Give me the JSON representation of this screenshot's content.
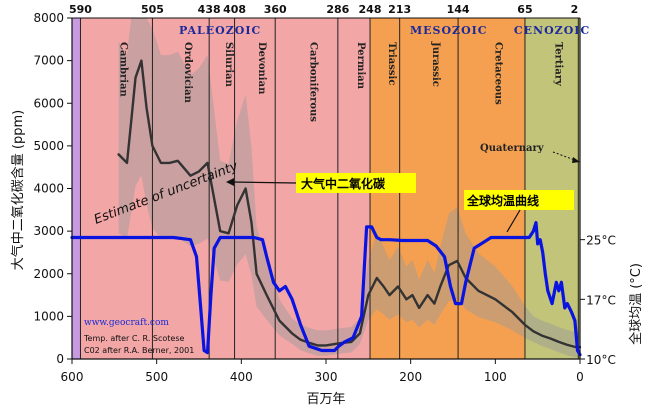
{
  "chart_data": {
    "type": "line",
    "xlabel": "百万年",
    "ylabel_left": "大气中二氧化碳含量 (ppm)",
    "ylabel_right": "全球均温 (°C)",
    "xlim": [
      600,
      0
    ],
    "ylim": [
      0,
      8000
    ],
    "x_ticks": [
      600,
      500,
      400,
      300,
      200,
      100,
      0
    ],
    "y_ticks": [
      0,
      1000,
      2000,
      3000,
      4000,
      5000,
      6000,
      7000,
      8000
    ],
    "right_ticks": [
      {
        "label": "25°C",
        "ppm": 2800
      },
      {
        "label": "17°C",
        "ppm": 1400
      },
      {
        "label": "10°C",
        "ppm": 0
      }
    ],
    "top_ages": [
      "590",
      "505",
      "438",
      "408",
      "360",
      "286",
      "248",
      "213",
      "144",
      "65",
      "2"
    ],
    "top_age_positions": [
      590,
      505,
      438,
      408,
      360,
      286,
      248,
      213,
      144,
      65,
      2
    ],
    "eras": [
      {
        "name": "PALEOZOIC",
        "at": 425
      },
      {
        "name": "MESOZOIC",
        "at": 155
      },
      {
        "name": "CENOZOIC",
        "at": 33
      }
    ],
    "periods": [
      {
        "name": "Cambrian",
        "start": 590,
        "end": 505,
        "color": "#f2a6a6"
      },
      {
        "name": "Ordovician",
        "start": 505,
        "end": 438,
        "color": "#f2a6a6"
      },
      {
        "name": "Silurian",
        "start": 438,
        "end": 408,
        "color": "#f2a6a6"
      },
      {
        "name": "Devonian",
        "start": 408,
        "end": 360,
        "color": "#f2a6a6"
      },
      {
        "name": "Carboniferous",
        "start": 360,
        "end": 286,
        "color": "#f2a6a6"
      },
      {
        "name": "Permian",
        "start": 286,
        "end": 248,
        "color": "#f2a6a6"
      },
      {
        "name": "Triassic",
        "start": 248,
        "end": 213,
        "color": "#f5a050"
      },
      {
        "name": "Jurassic",
        "start": 213,
        "end": 144,
        "color": "#f5a050"
      },
      {
        "name": "Cretaceous",
        "start": 144,
        "end": 65,
        "color": "#f5a050"
      },
      {
        "name": "Tertiary",
        "start": 65,
        "end": 2,
        "color": "#c2c47a"
      }
    ],
    "quaternary_label": "Quaternary",
    "uncertainty_label": "Estimate of uncertainty",
    "series": [
      {
        "name": "大气中二氧化碳",
        "color": "#333333",
        "x": [
          545,
          535,
          530,
          525,
          518,
          512,
          505,
          495,
          485,
          475,
          460,
          450,
          440,
          425,
          415,
          405,
          395,
          388,
          382,
          370,
          355,
          340,
          330,
          320,
          310,
          300,
          290,
          280,
          270,
          260,
          250,
          240,
          232,
          225,
          215,
          205,
          198,
          190,
          180,
          172,
          165,
          155,
          145,
          135,
          120,
          100,
          80,
          65,
          55,
          45,
          35,
          25,
          15,
          5,
          0
        ],
        "values": [
          4800,
          4600,
          5600,
          6600,
          7000,
          5900,
          5000,
          4600,
          4600,
          4650,
          4300,
          4400,
          4600,
          3000,
          2950,
          3600,
          4000,
          3200,
          2000,
          1500,
          900,
          600,
          450,
          380,
          320,
          320,
          350,
          380,
          400,
          600,
          1500,
          1900,
          1700,
          1500,
          1700,
          1400,
          1500,
          1200,
          1500,
          1300,
          1700,
          2200,
          2300,
          1900,
          1600,
          1400,
          1100,
          800,
          650,
          550,
          480,
          400,
          330,
          280,
          280
        ]
      },
      {
        "name": "全球均温曲线",
        "color": "#0a14e0",
        "x": [
          600,
          520,
          480,
          460,
          453,
          448,
          444,
          440,
          436,
          432,
          425,
          400,
          385,
          375,
          370,
          362,
          355,
          348,
          340,
          330,
          320,
          305,
          295,
          290,
          285,
          278,
          268,
          258,
          252,
          246,
          240,
          235,
          225,
          210,
          195,
          180,
          170,
          160,
          153,
          147,
          140,
          135,
          125,
          105,
          85,
          70,
          60,
          55,
          52,
          50,
          47,
          44,
          41,
          38,
          33,
          28,
          25,
          22,
          18,
          15,
          10,
          6,
          3,
          0
        ],
        "values": [
          2850,
          2850,
          2850,
          2800,
          2400,
          1200,
          200,
          150,
          1500,
          2600,
          2850,
          2850,
          2850,
          2800,
          2400,
          1800,
          1600,
          1700,
          1400,
          800,
          300,
          200,
          200,
          200,
          300,
          400,
          500,
          1000,
          3100,
          3100,
          2850,
          2800,
          2800,
          2780,
          2780,
          2780,
          2650,
          2400,
          1700,
          1300,
          1300,
          1800,
          2600,
          2850,
          2850,
          2850,
          2850,
          3000,
          3200,
          2700,
          2800,
          2500,
          2000,
          1600,
          1300,
          1800,
          1600,
          1800,
          1200,
          1300,
          1100,
          900,
          200,
          100
        ]
      }
    ],
    "annotations": [
      {
        "text": "大气中二氧化碳",
        "series": 0
      },
      {
        "text": "全球均温曲线",
        "series": 1
      }
    ],
    "credits": [
      "www.geocraft.com",
      "Temp. after C. R. Scotese",
      "C02 after R.A. Berner, 2001"
    ],
    "colors": {
      "precambrian": "#c89be0",
      "paleozoic": "#f2a6a6",
      "mesozoic": "#f5a050",
      "cenozoic": "#c2c47a",
      "uncertainty": "#9a9a9a",
      "callout_box": "#ffff00",
      "co2_line": "#333333",
      "temp_line": "#0a14e0"
    }
  }
}
